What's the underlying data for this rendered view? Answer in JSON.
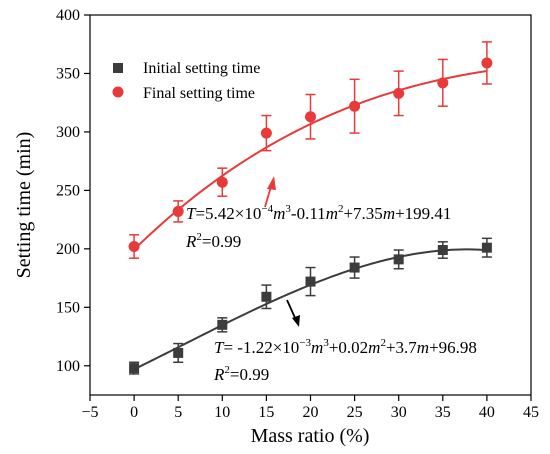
{
  "chart_data": {
    "type": "scatter",
    "xlabel": "Mass ratio (%)",
    "ylabel": "Setting time (min)",
    "xlim": [
      -5,
      45
    ],
    "ylim": [
      75,
      400
    ],
    "xticks": [
      -5,
      0,
      5,
      10,
      15,
      20,
      25,
      30,
      35,
      40,
      45
    ],
    "yticks": [
      100,
      150,
      200,
      250,
      300,
      350,
      400
    ],
    "grid": false,
    "legend_position": "top-left",
    "x": [
      0,
      5,
      10,
      15,
      20,
      25,
      30,
      35,
      40
    ],
    "series": [
      {
        "name": "Initial setting time",
        "marker": "square",
        "color": "#3c3c3c",
        "values": [
          98,
          111,
          135,
          159,
          172,
          184,
          191,
          199,
          201
        ],
        "errors": [
          5,
          8,
          6,
          10,
          12,
          9,
          8,
          7,
          8
        ],
        "fit": {
          "a": -0.00122,
          "b": 0.02,
          "c": 3.7,
          "d": 96.98
        }
      },
      {
        "name": "Final setting time",
        "marker": "circle",
        "color": "#e83a3a",
        "values": [
          202,
          232,
          257,
          299,
          313,
          322,
          333,
          342,
          359
        ],
        "errors": [
          10,
          9,
          12,
          15,
          19,
          23,
          19,
          20,
          18
        ],
        "fit": {
          "a": 0.000542,
          "b": -0.11,
          "c": 7.35,
          "d": 199.41
        }
      }
    ],
    "annotations": [
      {
        "equation_parts": [
          "T",
          "=5.42×10",
          "−4",
          "m",
          "3",
          "-0.11",
          "m",
          "2",
          "+7.35",
          "m",
          "+199.41"
        ],
        "r2_parts": [
          "R",
          "2",
          "=0.99"
        ]
      },
      {
        "equation_parts": [
          "T",
          "= -1.22×10",
          "−3",
          "m",
          "3",
          "+0.02",
          "m",
          "2",
          "+3.7",
          "m",
          "+96.98"
        ],
        "r2_parts": [
          "R",
          "2",
          "=0.99"
        ]
      }
    ]
  }
}
